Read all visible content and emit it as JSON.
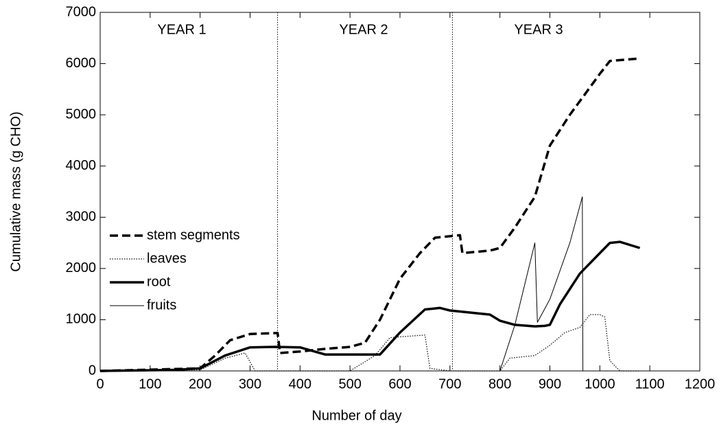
{
  "chart_data": {
    "type": "line",
    "xlabel": "Number of day",
    "ylabel": "Cumulative mass (g CHO)",
    "xlim": [
      0,
      1200
    ],
    "ylim": [
      0,
      7000
    ],
    "xticks": [
      0,
      100,
      200,
      300,
      400,
      500,
      600,
      700,
      800,
      900,
      1000,
      1100,
      1200
    ],
    "yticks": [
      0,
      1000,
      2000,
      3000,
      4000,
      5000,
      6000,
      7000
    ],
    "vlines": [
      355,
      705
    ],
    "annotations": [
      "YEAR 1",
      "YEAR 2",
      "YEAR 3"
    ],
    "series": [
      {
        "name": "stem segments",
        "color": "#000000",
        "linestyle": "dashed",
        "linewidth": 3.5,
        "x": [
          0,
          200,
          230,
          260,
          300,
          355,
          360,
          400,
          450,
          500,
          530,
          560,
          600,
          640,
          670,
          720,
          725,
          780,
          800,
          830,
          870,
          900,
          940,
          970,
          1000,
          1020,
          1080
        ],
        "values": [
          0,
          50,
          300,
          600,
          720,
          740,
          350,
          380,
          430,
          470,
          550,
          1000,
          1800,
          2300,
          2600,
          2650,
          2300,
          2350,
          2400,
          2800,
          3400,
          4400,
          5000,
          5400,
          5800,
          6050,
          6100
        ]
      },
      {
        "name": "leaves",
        "color": "#000000",
        "linestyle": "dotted",
        "linewidth": 1.2,
        "x": [
          0,
          200,
          250,
          290,
          310,
          500,
          550,
          580,
          620,
          650,
          660,
          700,
          800,
          820,
          870,
          900,
          930,
          960,
          980,
          1000,
          1010,
          1020,
          1040,
          1080
        ],
        "values": [
          0,
          20,
          250,
          350,
          0,
          0,
          300,
          650,
          680,
          700,
          50,
          0,
          0,
          250,
          300,
          500,
          750,
          850,
          1100,
          1100,
          1050,
          200,
          0,
          0
        ]
      },
      {
        "name": "root",
        "color": "#000000",
        "linestyle": "solid",
        "linewidth": 3.5,
        "x": [
          0,
          150,
          200,
          250,
          300,
          350,
          400,
          450,
          560,
          600,
          650,
          680,
          700,
          780,
          800,
          830,
          870,
          890,
          900,
          920,
          960,
          1000,
          1020,
          1040,
          1080
        ],
        "values": [
          0,
          20,
          50,
          300,
          460,
          470,
          460,
          320,
          320,
          750,
          1200,
          1230,
          1180,
          1100,
          980,
          900,
          870,
          880,
          900,
          1300,
          1900,
          2300,
          2500,
          2520,
          2400
        ]
      },
      {
        "name": "fruits",
        "color": "#000000",
        "linestyle": "solid",
        "linewidth": 1,
        "x": [
          800,
          830,
          870,
          875,
          900,
          940,
          965,
          966
        ],
        "values": [
          0,
          900,
          2500,
          950,
          1400,
          2500,
          3400,
          0
        ]
      }
    ]
  }
}
